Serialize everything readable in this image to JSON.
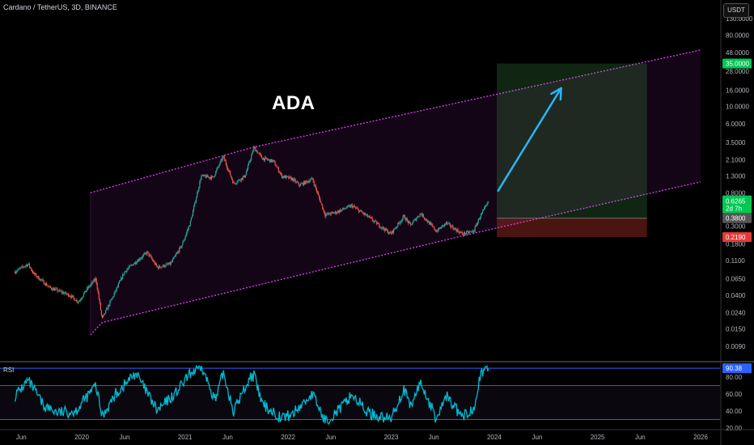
{
  "header": {
    "symbol_title": "Cardano / TetherUS, 3D, BINANCE",
    "currency": "USDT"
  },
  "annotation": {
    "title": "ADA"
  },
  "indicator": {
    "name": "RSI",
    "value_label": "90.38",
    "ticks": [
      "80.00",
      "60.00",
      "40.00",
      "20.00"
    ]
  },
  "price_axis": {
    "ticks": [
      "130.0000",
      "80.0000",
      "48.0000",
      "28.0000",
      "16.0000",
      "10.0000",
      "6.0000",
      "3.5000",
      "2.1000",
      "1.3000",
      "0.8000",
      "0.3000",
      "0.1800",
      "0.1100",
      "0.0650",
      "0.0400",
      "0.0240",
      "0.0150",
      "0.0090"
    ],
    "target_label": "35.0000",
    "current_price": "0.6265",
    "countdown": "2d 7h",
    "entry_label": "0.3800",
    "stop_label": "0.2190"
  },
  "time_axis": {
    "ticks": [
      "Jun",
      "2020",
      "Jun",
      "2021",
      "Jun",
      "2022",
      "Jun",
      "2023",
      "Jun",
      "2024",
      "Jun",
      "2025",
      "Jun",
      "2026"
    ]
  },
  "colors": {
    "up": "#26a69a",
    "down": "#ef5350",
    "channel": "#e040fb",
    "rsi": "#00bcd4",
    "arrow": "#29b6f6",
    "target": "#00c853",
    "stop": "#e53935"
  },
  "chart_data": {
    "type": "candlestick",
    "scale": "log",
    "xlabel": "",
    "ylabel": "",
    "price_path": [
      {
        "t": "2019-05-10",
        "p": 0.08
      },
      {
        "t": "2019-06-25",
        "p": 0.1
      },
      {
        "t": "2019-07-15",
        "p": 0.075
      },
      {
        "t": "2019-09-10",
        "p": 0.05
      },
      {
        "t": "2019-11-20",
        "p": 0.04
      },
      {
        "t": "2019-12-20",
        "p": 0.033
      },
      {
        "t": "2020-01-20",
        "p": 0.048
      },
      {
        "t": "2020-02-20",
        "p": 0.065
      },
      {
        "t": "2020-03-13",
        "p": 0.02
      },
      {
        "t": "2020-04-15",
        "p": 0.035
      },
      {
        "t": "2020-06-01",
        "p": 0.08
      },
      {
        "t": "2020-07-01",
        "p": 0.1
      },
      {
        "t": "2020-08-20",
        "p": 0.14
      },
      {
        "t": "2020-09-25",
        "p": 0.09
      },
      {
        "t": "2020-11-10",
        "p": 0.1
      },
      {
        "t": "2020-12-20",
        "p": 0.17
      },
      {
        "t": "2021-01-20",
        "p": 0.34
      },
      {
        "t": "2021-02-27",
        "p": 1.3
      },
      {
        "t": "2021-04-10",
        "p": 1.25
      },
      {
        "t": "2021-05-16",
        "p": 2.3
      },
      {
        "t": "2021-06-22",
        "p": 1.05
      },
      {
        "t": "2021-08-01",
        "p": 1.3
      },
      {
        "t": "2021-09-02",
        "p": 3.0
      },
      {
        "t": "2021-10-01",
        "p": 2.2
      },
      {
        "t": "2021-11-10",
        "p": 2.0
      },
      {
        "t": "2021-12-10",
        "p": 1.3
      },
      {
        "t": "2022-01-15",
        "p": 1.2
      },
      {
        "t": "2022-02-10",
        "p": 1.0
      },
      {
        "t": "2022-03-28",
        "p": 1.2
      },
      {
        "t": "2022-05-12",
        "p": 0.42
      },
      {
        "t": "2022-06-18",
        "p": 0.45
      },
      {
        "t": "2022-08-14",
        "p": 0.55
      },
      {
        "t": "2022-10-10",
        "p": 0.4
      },
      {
        "t": "2022-12-30",
        "p": 0.24
      },
      {
        "t": "2023-02-15",
        "p": 0.4
      },
      {
        "t": "2023-03-10",
        "p": 0.31
      },
      {
        "t": "2023-04-15",
        "p": 0.44
      },
      {
        "t": "2023-06-10",
        "p": 0.26
      },
      {
        "t": "2023-07-15",
        "p": 0.33
      },
      {
        "t": "2023-09-10",
        "p": 0.24
      },
      {
        "t": "2023-10-20",
        "p": 0.26
      },
      {
        "t": "2023-11-10",
        "p": 0.39
      },
      {
        "t": "2023-12-14",
        "p": 0.6265
      }
    ],
    "channel": {
      "upper": [
        {
          "t": "2020-02-01",
          "p": 0.8
        },
        {
          "t": "2021-09-02",
          "p": 3.05
        },
        {
          "t": "2026-01-01",
          "p": 52.0
        }
      ],
      "lower": [
        {
          "t": "2020-02-01",
          "p": 0.0125
        },
        {
          "t": "2020-03-13",
          "p": 0.018
        },
        {
          "t": "2023-10-20",
          "p": 0.245
        },
        {
          "t": "2026-01-01",
          "p": 1.1
        }
      ]
    },
    "position": {
      "entry": 0.38,
      "target": 35.0,
      "stop": 0.219,
      "start": "2024-01-10",
      "end": "2025-06-25"
    },
    "arrow": {
      "from": {
        "t": "2024-01-15",
        "p": 0.85
      },
      "to": {
        "t": "2024-08-25",
        "p": 17.0
      }
    },
    "rsi": [
      {
        "t": "2019-05-10",
        "v": 58
      },
      {
        "t": "2019-06-25",
        "v": 76
      },
      {
        "t": "2019-08-20",
        "v": 46
      },
      {
        "t": "2019-10-10",
        "v": 38
      },
      {
        "t": "2019-12-10",
        "v": 40
      },
      {
        "t": "2020-02-20",
        "v": 70
      },
      {
        "t": "2020-03-13",
        "v": 34
      },
      {
        "t": "2020-05-01",
        "v": 60
      },
      {
        "t": "2020-07-10",
        "v": 85
      },
      {
        "t": "2020-09-25",
        "v": 40
      },
      {
        "t": "2020-12-01",
        "v": 62
      },
      {
        "t": "2021-01-20",
        "v": 84
      },
      {
        "t": "2021-02-27",
        "v": 92
      },
      {
        "t": "2021-04-20",
        "v": 52
      },
      {
        "t": "2021-05-16",
        "v": 86
      },
      {
        "t": "2021-06-22",
        "v": 40
      },
      {
        "t": "2021-08-20",
        "v": 80
      },
      {
        "t": "2021-09-02",
        "v": 82
      },
      {
        "t": "2021-10-01",
        "v": 48
      },
      {
        "t": "2021-12-10",
        "v": 32
      },
      {
        "t": "2022-01-15",
        "v": 36
      },
      {
        "t": "2022-03-28",
        "v": 60
      },
      {
        "t": "2022-05-12",
        "v": 28
      },
      {
        "t": "2022-07-15",
        "v": 46
      },
      {
        "t": "2022-08-14",
        "v": 60
      },
      {
        "t": "2022-10-10",
        "v": 38
      },
      {
        "t": "2022-12-30",
        "v": 30
      },
      {
        "t": "2023-02-15",
        "v": 66
      },
      {
        "t": "2023-03-10",
        "v": 44
      },
      {
        "t": "2023-04-15",
        "v": 74
      },
      {
        "t": "2023-06-10",
        "v": 30
      },
      {
        "t": "2023-07-15",
        "v": 58
      },
      {
        "t": "2023-09-10",
        "v": 32
      },
      {
        "t": "2023-10-20",
        "v": 44
      },
      {
        "t": "2023-11-10",
        "v": 80
      },
      {
        "t": "2023-12-14",
        "v": 90.38
      }
    ]
  }
}
